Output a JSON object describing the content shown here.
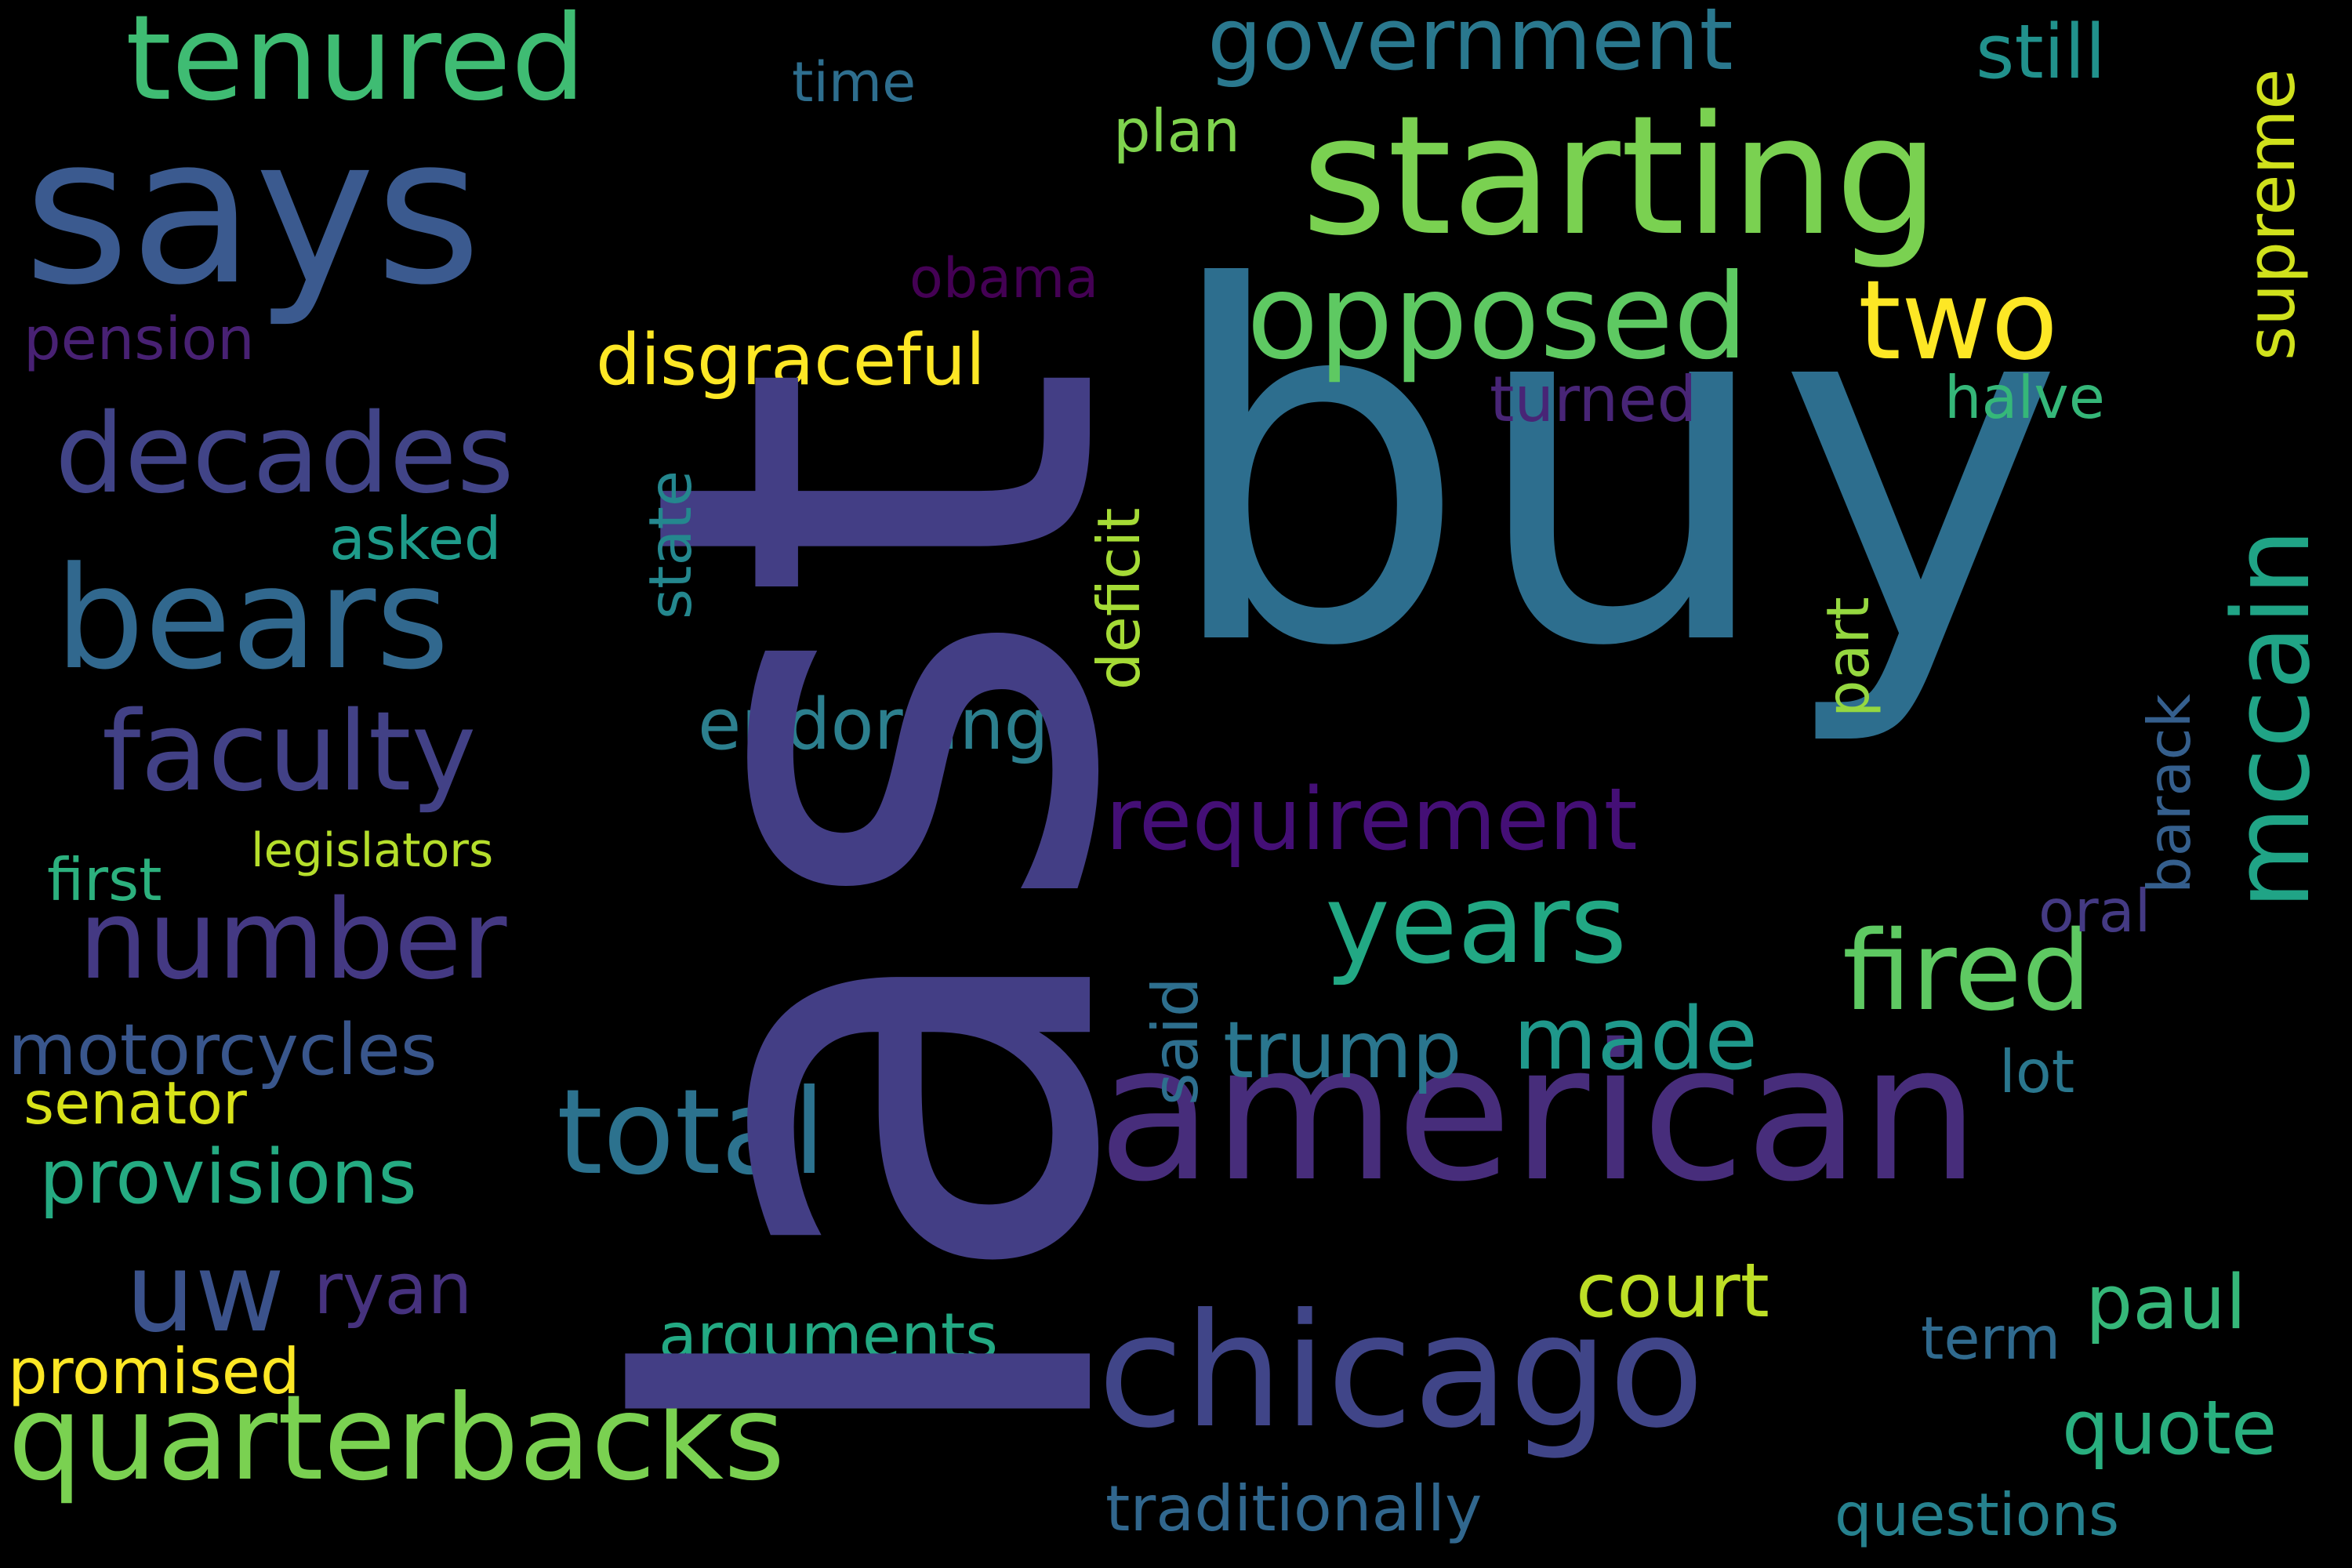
{
  "words": [
    {
      "text": "last",
      "color": "#433e85",
      "rotated": true
    },
    {
      "text": "buy",
      "color": "#2d6e8e"
    },
    {
      "text": "american",
      "color": "#472d7b"
    },
    {
      "text": "says",
      "color": "#3b5a8f"
    },
    {
      "text": "starting",
      "color": "#7ad151"
    },
    {
      "text": "chicago",
      "color": "#404588"
    },
    {
      "text": "quarterbacks",
      "color": "#7ad151"
    },
    {
      "text": "bears",
      "color": "#31688e"
    },
    {
      "text": "tenured",
      "color": "#3fbc73"
    },
    {
      "text": "opposed",
      "color": "#5ec962"
    },
    {
      "text": "two",
      "color": "#fde725"
    },
    {
      "text": "decades",
      "color": "#414487"
    },
    {
      "text": "faculty",
      "color": "#424186"
    },
    {
      "text": "number",
      "color": "#443983"
    },
    {
      "text": "total",
      "color": "#2c728e"
    },
    {
      "text": "years",
      "color": "#22a884"
    },
    {
      "text": "fired",
      "color": "#5ec962"
    },
    {
      "text": "mccain",
      "color": "#20a486",
      "rotated": true
    },
    {
      "text": "government",
      "color": "#2a788e"
    },
    {
      "text": "uw",
      "color": "#3b528b"
    },
    {
      "text": "requirement",
      "color": "#440f76"
    },
    {
      "text": "endorsing",
      "color": "#2c7f8e"
    },
    {
      "text": "disgraceful",
      "color": "#fde725"
    },
    {
      "text": "made",
      "color": "#1f988b"
    },
    {
      "text": "trump",
      "color": "#2a768e"
    },
    {
      "text": "provisions",
      "color": "#25ab82"
    },
    {
      "text": "motorcycles",
      "color": "#39568c"
    },
    {
      "text": "court",
      "color": "#bddf26"
    },
    {
      "text": "paul",
      "color": "#35b779"
    },
    {
      "text": "quote",
      "color": "#29af7f"
    },
    {
      "text": "ryan",
      "color": "#46327e"
    },
    {
      "text": "arguments",
      "color": "#23a983"
    },
    {
      "text": "promised",
      "color": "#fde725"
    },
    {
      "text": "senator",
      "color": "#d8e219"
    },
    {
      "text": "supreme",
      "color": "#d0e11c",
      "rotated": true
    },
    {
      "text": "still",
      "color": "#21918c"
    },
    {
      "text": "plan",
      "color": "#7fd34e"
    },
    {
      "text": "time",
      "color": "#2e6e8e"
    },
    {
      "text": "obama",
      "color": "#440154"
    },
    {
      "text": "pension",
      "color": "#482173"
    },
    {
      "text": "turned",
      "color": "#482576"
    },
    {
      "text": "halve",
      "color": "#35b779"
    },
    {
      "text": "asked",
      "color": "#1e9b8a"
    },
    {
      "text": "state",
      "color": "#24878e",
      "rotated": true
    },
    {
      "text": "deficit",
      "color": "#a5db36",
      "rotated": true
    },
    {
      "text": "said",
      "color": "#2e6f8e",
      "rotated": true
    },
    {
      "text": "part",
      "color": "#95d840",
      "rotated": true
    },
    {
      "text": "barack",
      "color": "#355f8d",
      "rotated": true
    },
    {
      "text": "oral",
      "color": "#443a83"
    },
    {
      "text": "lot",
      "color": "#2a778e"
    },
    {
      "text": "term",
      "color": "#306a8e"
    },
    {
      "text": "first",
      "color": "#2cb17e"
    },
    {
      "text": "legislators",
      "color": "#b5de2b"
    },
    {
      "text": "traditionally",
      "color": "#31678e"
    },
    {
      "text": "questions",
      "color": "#26818e"
    }
  ]
}
